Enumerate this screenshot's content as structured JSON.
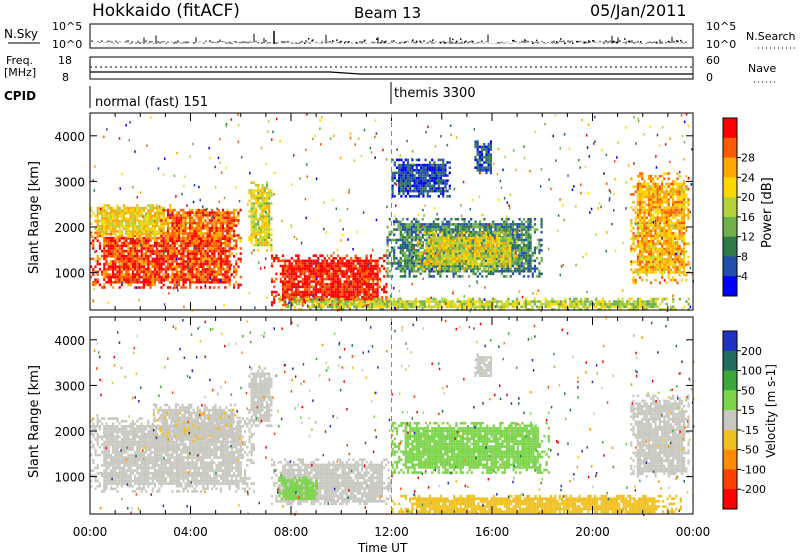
{
  "header": {
    "title": "Hokkaido (fitACF)",
    "beam": "Beam 13",
    "date": "05/Jan/2011"
  },
  "sky_panel": {
    "left_label": "N.Sky",
    "right_label": "N.Search",
    "left_ticks": [
      "10^5",
      "10^0"
    ],
    "right_ticks": [
      "10^5",
      "10^0"
    ]
  },
  "freq_panel": {
    "left_label_1": "Freq.",
    "left_label_2": "[MHz]",
    "right_label": "Nave",
    "left_ticks": [
      "18",
      "8"
    ],
    "right_ticks": [
      "60",
      "0"
    ]
  },
  "cpid": {
    "label": "CPID",
    "segments": [
      {
        "text": "normal (fast) 151",
        "start": "00:00"
      },
      {
        "text": "themis 3300",
        "start": "12:00"
      }
    ]
  },
  "chart_data": [
    {
      "type": "heatmap",
      "parameter": "power",
      "ylabel": "Slant Range [km]",
      "ylim": [
        180,
        4500
      ],
      "yticks": [
        1000,
        2000,
        3000,
        4000
      ],
      "xlim_hours": [
        0,
        24
      ],
      "colorbar": {
        "label": "Power [dB]",
        "range": [
          0,
          32
        ],
        "ticks": [
          "4",
          "8",
          "12",
          "16",
          "20",
          "24",
          "28"
        ],
        "colors": [
          "#0000ff",
          "#224fae",
          "#2e7a4a",
          "#6fb04a",
          "#b6d23a",
          "#ffd700",
          "#ffa500",
          "#ff5a00",
          "#ff0000"
        ]
      },
      "regions": [
        {
          "t0": 0.0,
          "t1": 6.0,
          "r0": 700,
          "r1": 1900,
          "level": 28
        },
        {
          "t0": 0.0,
          "t1": 3.2,
          "r0": 1800,
          "r1": 2500,
          "level": 20
        },
        {
          "t0": 2.8,
          "t1": 6.0,
          "r0": 1700,
          "r1": 2400,
          "level": 26
        },
        {
          "t0": 6.3,
          "t1": 7.2,
          "r0": 1500,
          "r1": 3000,
          "level": 18
        },
        {
          "t0": 7.2,
          "t1": 11.8,
          "r0": 300,
          "r1": 1400,
          "level": 30
        },
        {
          "t0": 7.5,
          "t1": 23.8,
          "r0": 220,
          "r1": 450,
          "level": 16
        },
        {
          "t0": 11.8,
          "t1": 18.0,
          "r0": 900,
          "r1": 2200,
          "level": 9
        },
        {
          "t0": 13.0,
          "t1": 17.0,
          "r0": 1100,
          "r1": 1900,
          "level": 18
        },
        {
          "t0": 12.0,
          "t1": 14.3,
          "r0": 2700,
          "r1": 3500,
          "level": 5
        },
        {
          "t0": 15.3,
          "t1": 16.0,
          "r0": 3200,
          "r1": 3900,
          "level": 6
        },
        {
          "t0": 21.5,
          "t1": 23.8,
          "r0": 800,
          "r1": 3200,
          "level": 22
        }
      ]
    },
    {
      "type": "heatmap",
      "parameter": "velocity",
      "ylabel": "Slant Range [km]",
      "xlabel": "Time UT",
      "ylim": [
        180,
        4500
      ],
      "yticks": [
        1000,
        2000,
        3000,
        4000
      ],
      "xlim_hours": [
        0,
        24
      ],
      "xticks": [
        "00:00",
        "04:00",
        "08:00",
        "12:00",
        "16:00",
        "20:00",
        "00:00"
      ],
      "colorbar": {
        "label": "Velocity [m s-1]",
        "range": [
          -250,
          250
        ],
        "ticks": [
          "200",
          "100",
          "50",
          "15",
          "-15",
          "-50",
          "-100",
          "-200"
        ],
        "colors": [
          "#2030c0",
          "#1f6e5e",
          "#3aa83a",
          "#7cd44a",
          "#c8c8c0",
          "#f0c020",
          "#ff8c00",
          "#ff4000",
          "#ff0000"
        ]
      },
      "regions": [
        {
          "t0": 0.0,
          "t1": 6.5,
          "r0": 700,
          "r1": 2300,
          "level": 0
        },
        {
          "t0": 2.5,
          "t1": 6.0,
          "r0": 1800,
          "r1": 2600,
          "level": -20
        },
        {
          "t0": 6.3,
          "t1": 7.2,
          "r0": 2100,
          "r1": 3400,
          "level": 0
        },
        {
          "t0": 7.2,
          "t1": 12.0,
          "r0": 400,
          "r1": 1400,
          "level": 0
        },
        {
          "t0": 7.5,
          "t1": 9.0,
          "r0": 500,
          "r1": 1000,
          "level": 40
        },
        {
          "t0": 12.0,
          "t1": 23.5,
          "r0": 220,
          "r1": 600,
          "level": -40
        },
        {
          "t0": 12.0,
          "t1": 18.3,
          "r0": 1100,
          "r1": 2200,
          "level": 45
        },
        {
          "t0": 15.3,
          "t1": 16.0,
          "r0": 3200,
          "r1": 3700,
          "level": 0
        },
        {
          "t0": 21.5,
          "t1": 23.8,
          "r0": 1000,
          "r1": 2800,
          "level": 0
        }
      ]
    }
  ]
}
